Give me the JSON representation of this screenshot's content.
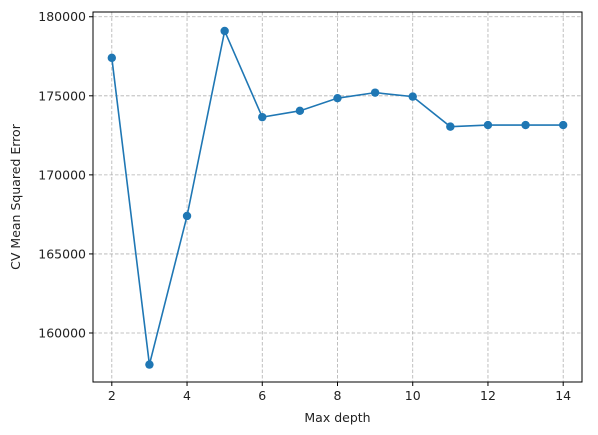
{
  "chart_data": {
    "type": "line",
    "title": "",
    "xlabel": "Max depth",
    "ylabel": "CV Mean Squared Error",
    "xlim": [
      1.5,
      14.5
    ],
    "ylim": [
      156900,
      180300
    ],
    "xticks": [
      2,
      4,
      6,
      8,
      10,
      12,
      14
    ],
    "yticks": [
      160000,
      165000,
      170000,
      175000,
      180000
    ],
    "grid": true,
    "grid_style": "dashed",
    "legend": "none",
    "series": [
      {
        "color": "#1f77b4",
        "marker": "circle",
        "x": [
          2,
          3,
          4,
          5,
          6,
          7,
          8,
          9,
          10,
          11,
          12,
          13,
          14
        ],
        "y": [
          177400,
          158000,
          167400,
          179100,
          173650,
          174050,
          174850,
          175200,
          174950,
          173050,
          173150,
          173150,
          173150
        ]
      }
    ]
  }
}
